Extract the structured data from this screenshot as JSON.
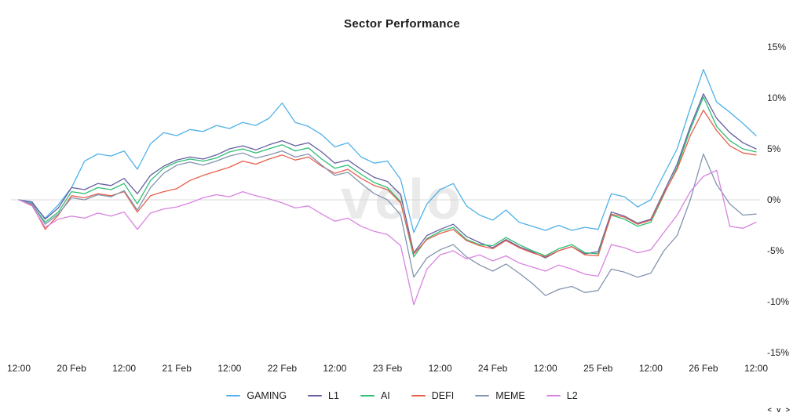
{
  "chart": {
    "title": "Sector Performance",
    "watermark": "velo",
    "brand_mark": "< v >"
  },
  "chart_data": {
    "type": "line",
    "title": "Sector Performance",
    "grid": "zero-line-only",
    "legend_position": "bottom",
    "ylim": [
      -15,
      15
    ],
    "y_ticks": {
      "labels": [
        "15%",
        "10%",
        "5%",
        "0%",
        "-5%",
        "-10%",
        "-15%"
      ],
      "values": [
        15,
        10,
        5,
        0,
        -5,
        -10,
        -15
      ]
    },
    "x_labels": [
      "12:00",
      "20 Feb",
      "12:00",
      "21 Feb",
      "12:00",
      "22 Feb",
      "12:00",
      "23 Feb",
      "12:00",
      "24 Feb",
      "12:00",
      "25 Feb",
      "12:00",
      "26 Feb",
      "12:00"
    ],
    "series": [
      {
        "name": "GAMING",
        "color": "#4fb1e8",
        "values": [
          0,
          -0.3,
          -1.8,
          -0.5,
          1.2,
          3.8,
          4.5,
          4.3,
          4.8,
          3.0,
          5.5,
          6.6,
          6.3,
          6.9,
          6.7,
          7.3,
          7.0,
          7.6,
          7.3,
          8.0,
          9.5,
          7.6,
          7.2,
          6.4,
          5.2,
          5.6,
          4.2,
          3.6,
          3.8,
          2.0,
          -3.2,
          -0.4,
          1.0,
          1.6,
          -0.6,
          -1.5,
          -2.0,
          -1.0,
          -2.2,
          -2.6,
          -3.0,
          -2.5,
          -3.0,
          -2.7,
          -2.9,
          0.6,
          0.3,
          -0.7,
          0.0,
          2.5,
          5.0,
          9.0,
          12.8,
          9.6,
          8.6,
          7.5,
          6.3
        ]
      },
      {
        "name": "L1",
        "color": "#6560a3",
        "values": [
          0,
          -0.2,
          -1.9,
          -0.8,
          1.2,
          1.0,
          1.6,
          1.4,
          2.1,
          0.6,
          2.4,
          3.3,
          3.9,
          4.2,
          4.0,
          4.4,
          5.0,
          5.3,
          4.9,
          5.4,
          5.8,
          5.3,
          5.6,
          4.7,
          3.6,
          3.9,
          3.0,
          2.2,
          1.8,
          0.5,
          -5.2,
          -3.5,
          -2.9,
          -2.4,
          -3.6,
          -4.2,
          -4.7,
          -3.9,
          -4.6,
          -5.1,
          -5.7,
          -5.0,
          -4.6,
          -5.3,
          -5.1,
          -1.2,
          -1.6,
          -2.3,
          -1.9,
          0.8,
          3.5,
          7.2,
          10.4,
          8.0,
          6.6,
          5.6,
          5.0
        ]
      },
      {
        "name": "AI",
        "color": "#2ebd75",
        "values": [
          0,
          -0.4,
          -2.2,
          -1.2,
          0.8,
          0.6,
          1.2,
          1.0,
          1.6,
          -0.4,
          1.9,
          3.1,
          3.7,
          4.0,
          3.8,
          4.1,
          4.7,
          5.0,
          4.6,
          5.0,
          5.4,
          4.8,
          5.1,
          4.0,
          3.1,
          3.4,
          2.5,
          1.7,
          1.2,
          -0.2,
          -5.6,
          -3.8,
          -3.1,
          -2.7,
          -3.9,
          -4.4,
          -4.5,
          -3.7,
          -4.4,
          -5.0,
          -5.5,
          -4.8,
          -4.4,
          -5.2,
          -5.3,
          -1.5,
          -1.9,
          -2.6,
          -2.2,
          0.5,
          3.2,
          6.9,
          10.1,
          7.2,
          5.8,
          5.0,
          4.7
        ]
      },
      {
        "name": "DEFI",
        "color": "#e7604c",
        "values": [
          0,
          -0.5,
          -2.9,
          -1.5,
          0.4,
          0.2,
          0.6,
          0.4,
          0.8,
          -1.2,
          0.4,
          0.8,
          1.1,
          1.9,
          2.4,
          2.8,
          3.2,
          3.8,
          3.5,
          4.0,
          4.4,
          3.9,
          4.2,
          3.3,
          2.6,
          3.0,
          2.1,
          1.4,
          1.0,
          -0.3,
          -5.3,
          -3.9,
          -3.3,
          -2.9,
          -4.0,
          -4.5,
          -4.8,
          -4.0,
          -4.7,
          -5.2,
          -5.6,
          -5.0,
          -4.6,
          -5.4,
          -5.5,
          -1.4,
          -1.7,
          -2.4,
          -2.0,
          0.6,
          3.0,
          6.3,
          8.8,
          6.8,
          5.3,
          4.6,
          4.4
        ]
      },
      {
        "name": "MEME",
        "color": "#8394af",
        "values": [
          0,
          -0.4,
          -2.4,
          -1.4,
          0.2,
          0.0,
          0.5,
          0.3,
          0.9,
          -1.0,
          1.2,
          2.6,
          3.4,
          3.7,
          3.4,
          3.8,
          4.3,
          4.6,
          4.1,
          4.4,
          4.8,
          4.2,
          4.5,
          3.4,
          2.4,
          2.7,
          1.6,
          0.6,
          0.0,
          -1.5,
          -7.6,
          -5.7,
          -4.9,
          -4.4,
          -5.6,
          -6.4,
          -7.0,
          -6.3,
          -7.2,
          -8.2,
          -9.4,
          -8.8,
          -8.5,
          -9.1,
          -8.9,
          -6.8,
          -7.1,
          -7.6,
          -7.2,
          -5.0,
          -3.5,
          0.0,
          4.5,
          1.5,
          -0.4,
          -1.5,
          -1.4
        ]
      },
      {
        "name": "L2",
        "color": "#d884e0",
        "values": [
          0,
          -0.6,
          -2.7,
          -1.9,
          -1.6,
          -1.8,
          -1.3,
          -1.6,
          -1.2,
          -2.9,
          -1.3,
          -0.9,
          -0.7,
          -0.3,
          0.2,
          0.5,
          0.3,
          0.8,
          0.4,
          0.1,
          -0.3,
          -0.8,
          -0.6,
          -1.4,
          -2.1,
          -1.8,
          -2.6,
          -3.1,
          -3.4,
          -4.5,
          -10.3,
          -6.8,
          -5.4,
          -5.0,
          -5.8,
          -5.4,
          -6.0,
          -5.5,
          -6.2,
          -6.6,
          -7.0,
          -6.4,
          -6.8,
          -7.3,
          -7.5,
          -4.4,
          -4.7,
          -5.2,
          -4.9,
          -3.2,
          -1.5,
          0.8,
          2.3,
          2.9,
          -2.6,
          -2.8,
          -2.2
        ]
      }
    ]
  }
}
